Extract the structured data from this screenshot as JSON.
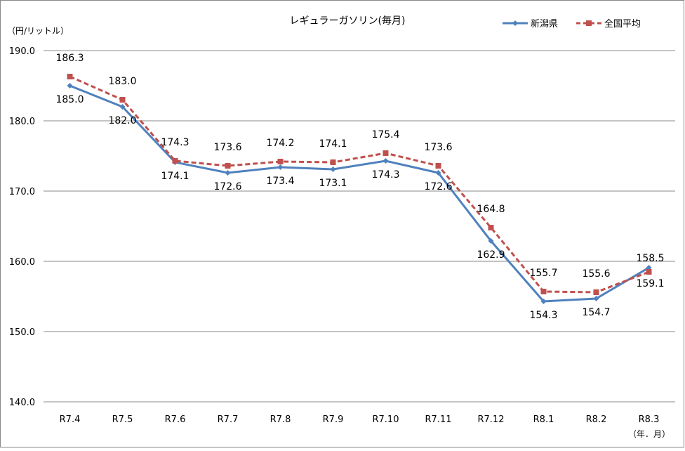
{
  "chart_data": {
    "type": "line",
    "title": "レギュラーガソリン(毎月)",
    "ylabel": "（円/リットル）",
    "xlabel": "（年．月）",
    "categories": [
      "R7.4",
      "R7.5",
      "R7.6",
      "R7.7",
      "R7.8",
      "R7.9",
      "R7.10",
      "R7.11",
      "R7.12",
      "R8.1",
      "R8.2",
      "R8.3"
    ],
    "ylim": [
      140,
      190
    ],
    "yticks": [
      "140.0",
      "150.0",
      "160.0",
      "170.0",
      "180.0",
      "190.0"
    ],
    "grid": true,
    "legend_position": "top-right",
    "series": [
      {
        "name": "新潟県",
        "color": "#4f81bd",
        "marker": "diamond",
        "line": "solid",
        "values": [
          185.0,
          182.0,
          174.1,
          172.6,
          173.4,
          173.1,
          174.3,
          172.6,
          162.9,
          154.3,
          154.7,
          159.1
        ]
      },
      {
        "name": "全国平均",
        "color": "#c0504d",
        "marker": "square",
        "line": "dashed",
        "values": [
          186.3,
          183.0,
          174.3,
          173.6,
          174.2,
          174.1,
          175.4,
          173.6,
          164.8,
          155.7,
          155.6,
          158.5
        ]
      }
    ]
  }
}
